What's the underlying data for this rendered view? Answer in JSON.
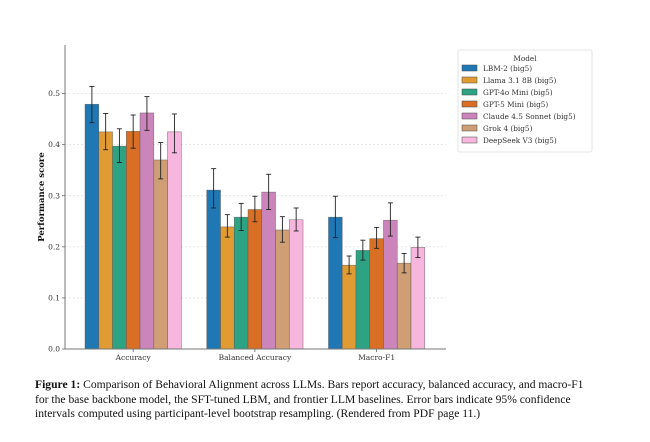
{
  "chart_data": {
    "type": "bar",
    "categories": [
      "Accuracy",
      "Balanced Accuracy",
      "Macro-F1"
    ],
    "ylabel": "Performance score",
    "xlabel": "",
    "ylim": [
      0,
      0.595
    ],
    "yticks": [
      "0.0",
      "0.1",
      "0.2",
      "0.3",
      "0.4",
      "0.5"
    ],
    "grid": "y-dashed",
    "legend": {
      "title": "Model",
      "placement": "top-right"
    },
    "series": [
      {
        "name": "LBM-2 (big5)",
        "color": "#1f77b4",
        "values": [
          0.479,
          0.311,
          0.258
        ],
        "ci_low": [
          0.443,
          0.276,
          0.218
        ],
        "ci_high": [
          0.514,
          0.353,
          0.299
        ]
      },
      {
        "name": "Llama 3.1 8B (big5)",
        "color": "#e09b32",
        "values": [
          0.425,
          0.239,
          0.164
        ],
        "ci_low": [
          0.39,
          0.219,
          0.147
        ],
        "ci_high": [
          0.461,
          0.263,
          0.182
        ]
      },
      {
        "name": "GPT-4o Mini (big5)",
        "color": "#2ea383",
        "values": [
          0.397,
          0.258,
          0.193
        ],
        "ci_low": [
          0.365,
          0.232,
          0.174
        ],
        "ci_high": [
          0.431,
          0.285,
          0.213
        ]
      },
      {
        "name": "GPT-5 Mini (big5)",
        "color": "#d86f25",
        "values": [
          0.426,
          0.273,
          0.216
        ],
        "ci_low": [
          0.393,
          0.249,
          0.197
        ],
        "ci_high": [
          0.458,
          0.299,
          0.238
        ]
      },
      {
        "name": "Claude 4.5 Sonnet (big5)",
        "color": "#cc85bb",
        "values": [
          0.462,
          0.307,
          0.252
        ],
        "ci_low": [
          0.428,
          0.273,
          0.221
        ],
        "ci_high": [
          0.494,
          0.342,
          0.286
        ]
      },
      {
        "name": "Grok 4 (big5)",
        "color": "#cf9e74",
        "values": [
          0.37,
          0.233,
          0.168
        ],
        "ci_low": [
          0.333,
          0.209,
          0.149
        ],
        "ci_high": [
          0.404,
          0.259,
          0.187
        ]
      },
      {
        "name": "DeepSeek V3 (big5)",
        "color": "#f7b6de",
        "values": [
          0.425,
          0.253,
          0.199
        ],
        "ci_low": [
          0.384,
          0.231,
          0.179
        ],
        "ci_high": [
          0.46,
          0.276,
          0.219
        ]
      }
    ]
  },
  "caption": {
    "label": "Figure 1:",
    "text": "Comparison of Behavioral Alignment across LLMs. Bars report accuracy, balanced accuracy, and macro-F1 for the base backbone model, the SFT-tuned LBM, and frontier LLM baselines. Error bars indicate 95% confidence intervals computed using participant-level bootstrap resampling. (Rendered from PDF page 11.)"
  }
}
